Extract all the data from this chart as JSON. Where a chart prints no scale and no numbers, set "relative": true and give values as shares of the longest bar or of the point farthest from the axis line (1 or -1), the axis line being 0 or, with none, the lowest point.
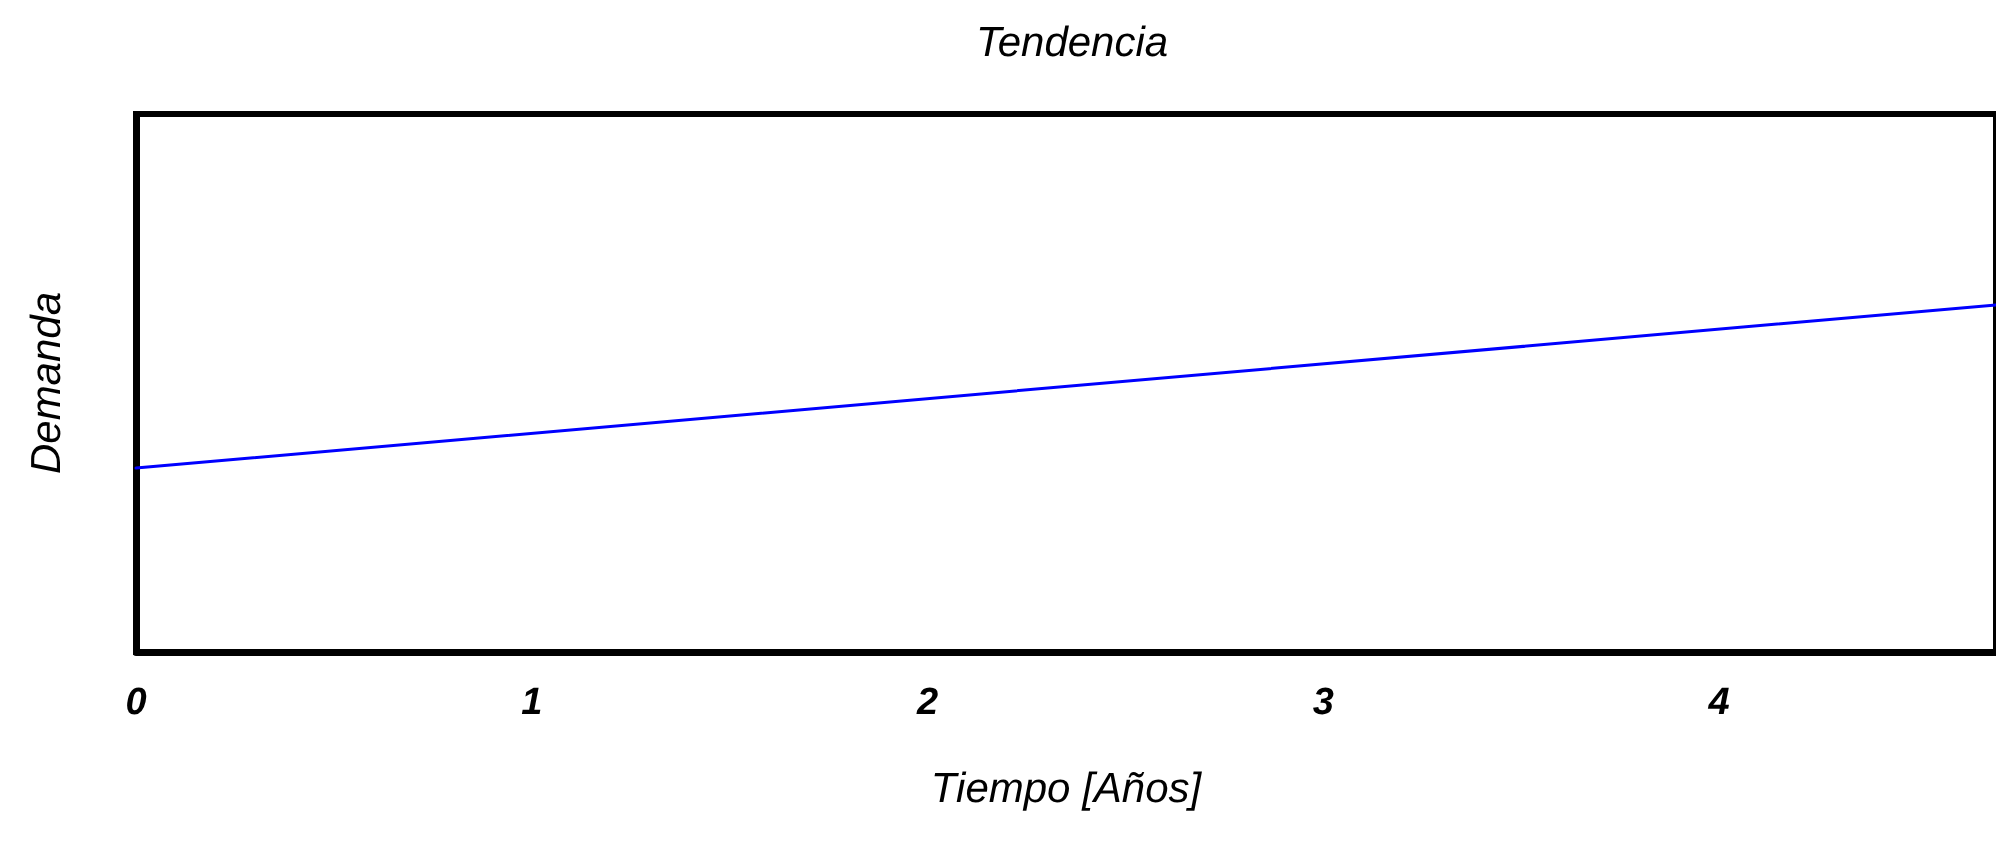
{
  "chart_data": {
    "type": "line",
    "title": "Tendencia",
    "xlabel": "Tiempo [Años]",
    "ylabel": "Demanda",
    "relative": true,
    "x": [
      0,
      4.7
    ],
    "series": [
      {
        "color": "#0000ff",
        "values": [
          0.53,
          1
        ]
      }
    ],
    "xlim": [
      0,
      4.7
    ],
    "xticks": [
      0,
      1,
      2,
      3,
      4
    ],
    "marker": "none",
    "line_style": "solid"
  }
}
